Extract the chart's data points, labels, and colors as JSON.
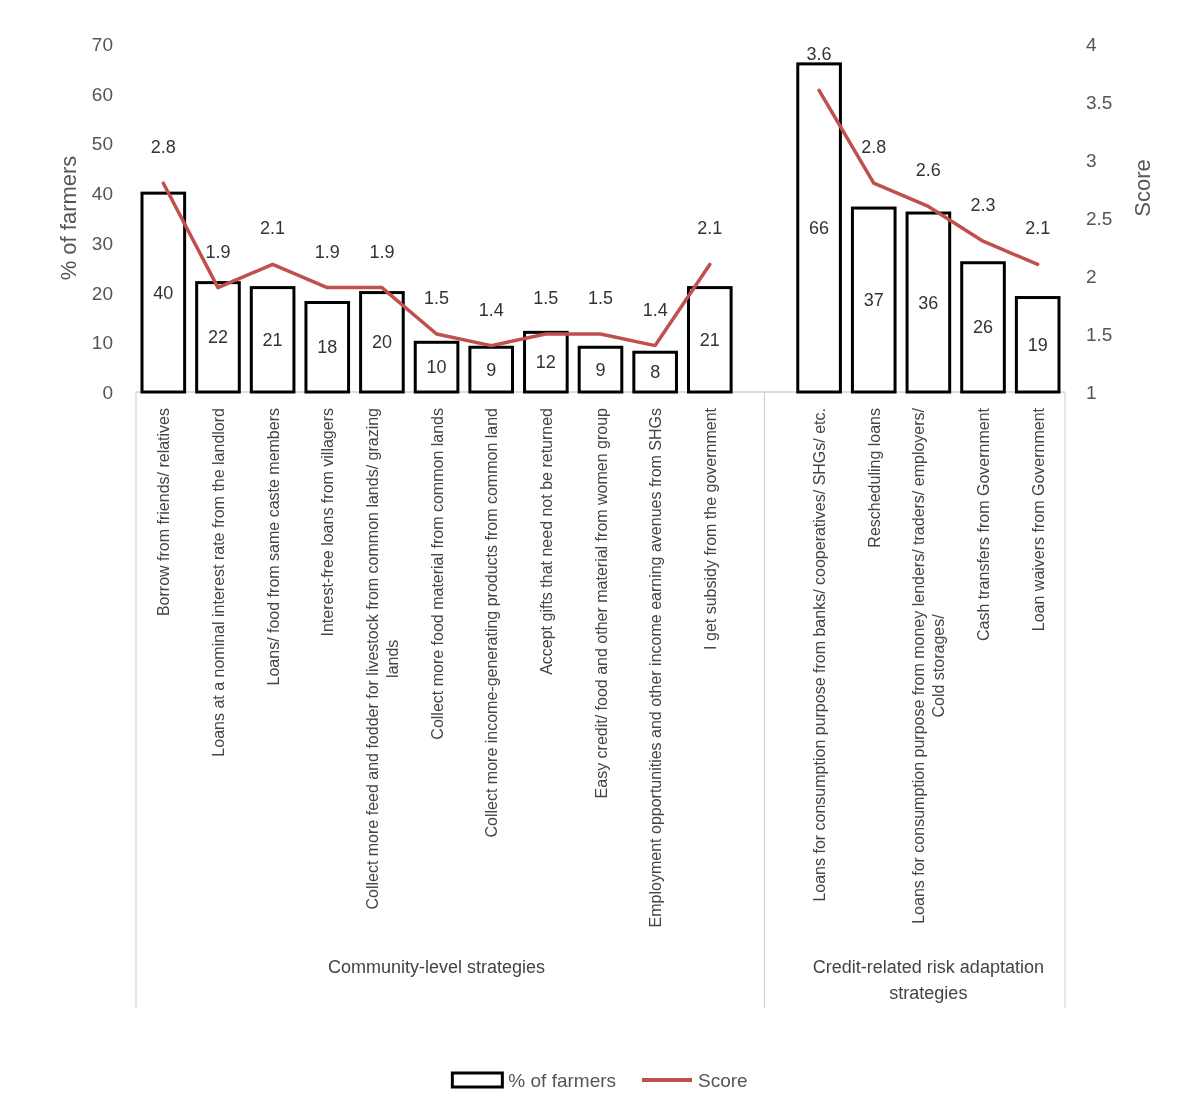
{
  "chart_data": {
    "type": "bar",
    "categories": [
      "Borrow from friends/ relatives",
      "Loans at a nominal interest rate from the landlord",
      "Loans/ food from same caste members",
      "Interest-free loans from villagers",
      "Collect more feed and fodder for livestock from common lands/ grazing lands",
      "Collect more food material from common lands",
      "Collect more income-generating products from common land",
      "Accept gifts that need not be returned",
      "Easy credit/ food and other material from women group",
      "Employment opportunities and other income earning avenues from SHGs",
      "I get subsidy from the government",
      null,
      "Loans for consumption purpose from banks/ cooperatives/ SHGs/ etc.",
      "Rescheduling loans",
      "Loans for consumption purpose from money lenders/ traders/ employers/ Cold storages/",
      "Cash transfers from Government",
      "Loan waivers from Government"
    ],
    "series": [
      {
        "name": "% of farmers",
        "color": "#ffffff",
        "values": [
          40,
          22,
          21,
          18,
          20,
          10,
          9,
          12,
          9,
          8,
          21,
          null,
          66,
          37,
          36,
          26,
          19
        ]
      },
      {
        "name": "Score",
        "type": "line",
        "axis": "y2",
        "color": "#c0504d",
        "values": [
          2.8,
          1.9,
          2.1,
          1.9,
          1.9,
          1.5,
          1.4,
          1.5,
          1.5,
          1.4,
          2.1,
          null,
          3.6,
          2.8,
          2.6,
          2.3,
          2.1
        ]
      }
    ],
    "ylabel": "% of farmers",
    "y2label": "Score",
    "ylim": [
      0,
      70
    ],
    "yticks": [
      0,
      10,
      20,
      30,
      40,
      50,
      60,
      70
    ],
    "y2lim": [
      1,
      4
    ],
    "y2ticks": [
      1,
      1.5,
      2,
      2.5,
      3,
      3.5,
      4
    ],
    "annotations": [
      "Community-level strategies",
      "Credit-related risk adaptation strategies"
    ],
    "data_labels": true,
    "legend": "bottom",
    "grid": false,
    "marker": "none"
  }
}
